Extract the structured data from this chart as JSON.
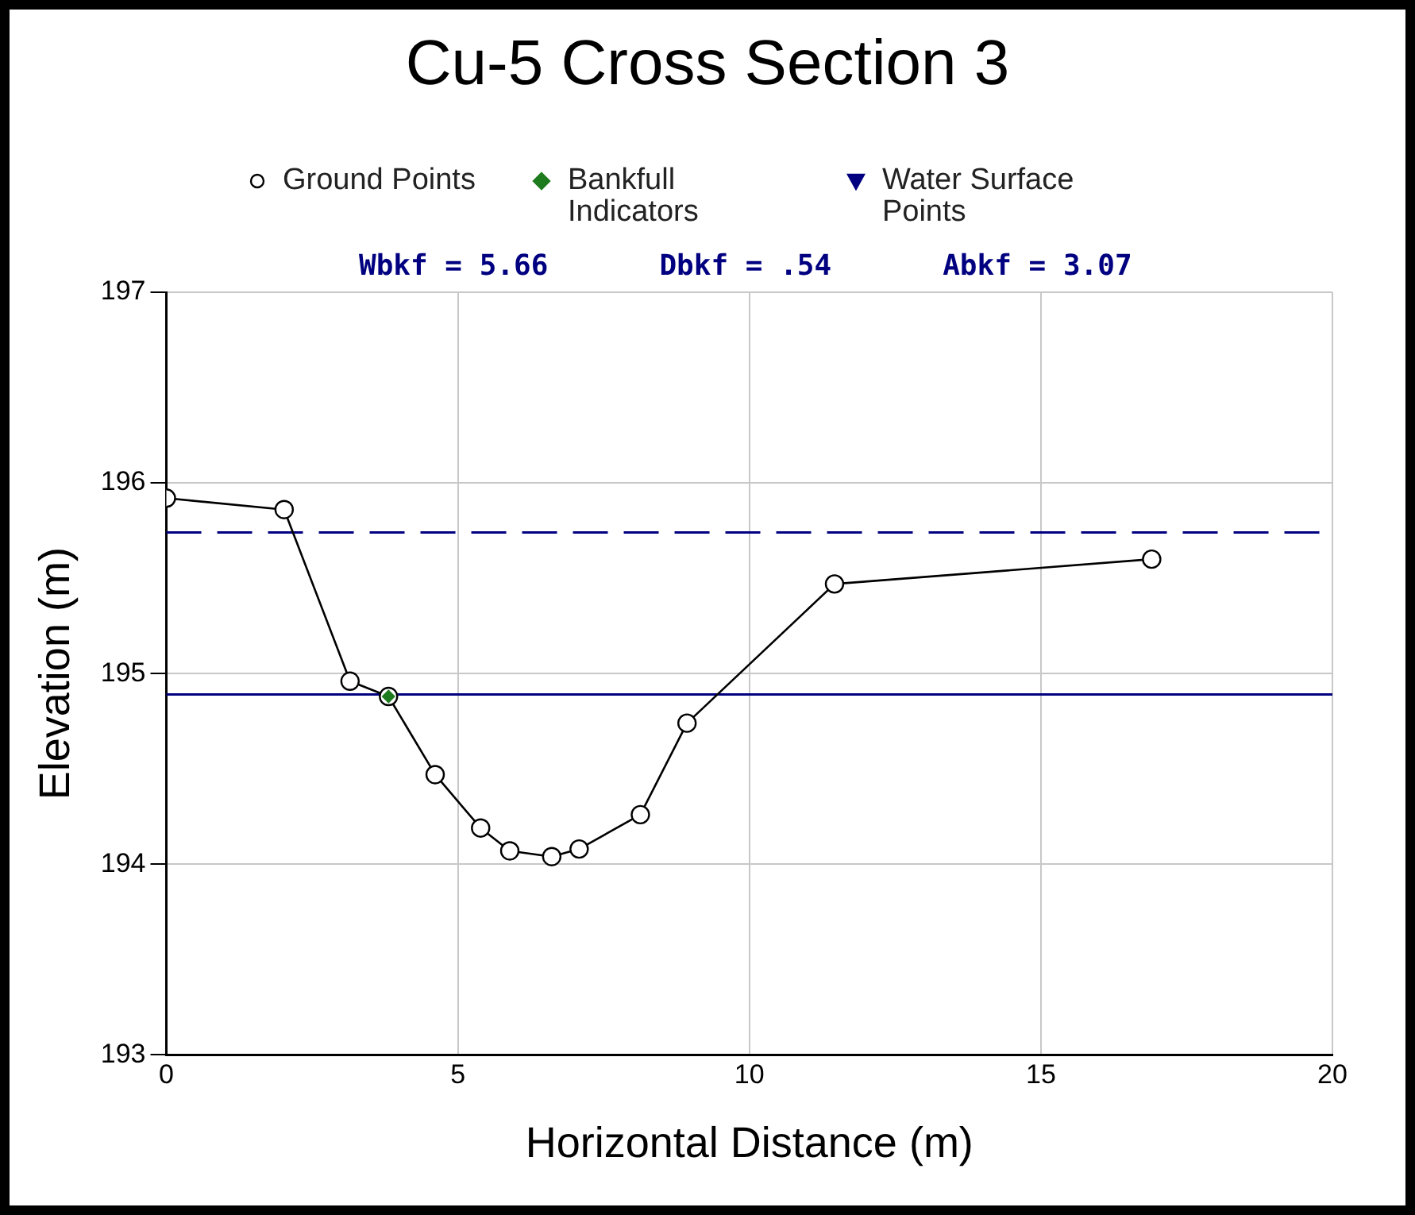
{
  "chart_data": {
    "type": "line",
    "title": "Cu-5 Cross Section 3",
    "xlabel": "Horizontal Distance (m)",
    "ylabel": "Elevation (m)",
    "annotations": [
      "Wbkf = 5.66",
      "Dbkf = .54",
      "Abkf = 3.07"
    ],
    "series": [
      {
        "name": "Ground Points",
        "color": "#000000",
        "marker": "circle",
        "x": [
          0,
          2.02,
          3.15,
          3.81,
          4.61,
          5.39,
          5.89,
          6.61,
          7.08,
          8.13,
          8.93,
          11.46,
          16.9
        ],
        "values": [
          195.92,
          195.86,
          194.96,
          194.88,
          194.47,
          194.19,
          194.07,
          194.04,
          194.08,
          194.26,
          194.74,
          195.47,
          195.6
        ]
      },
      {
        "name": "Bankfull Indicators",
        "type": "scatter",
        "color": "#1e7b1e",
        "marker": "diamond",
        "x": [
          3.81
        ],
        "values": [
          194.88
        ]
      },
      {
        "name": "Water Surface Points",
        "type": "scatter",
        "color": "#000080",
        "marker": "triangle"
      }
    ],
    "ref_lines": [
      {
        "axis": "y",
        "value": 195.74,
        "color": "#000080",
        "line_style": "dashed"
      },
      {
        "axis": "y",
        "value": 194.89,
        "color": "#000080",
        "line_style": "solid"
      }
    ],
    "xlim": [
      0,
      20
    ],
    "xticks": [
      0,
      5,
      10,
      15,
      20
    ],
    "ylim": [
      193,
      197
    ],
    "yticks": [
      193,
      194,
      195,
      196,
      197
    ],
    "grid": true,
    "legend": "top"
  }
}
